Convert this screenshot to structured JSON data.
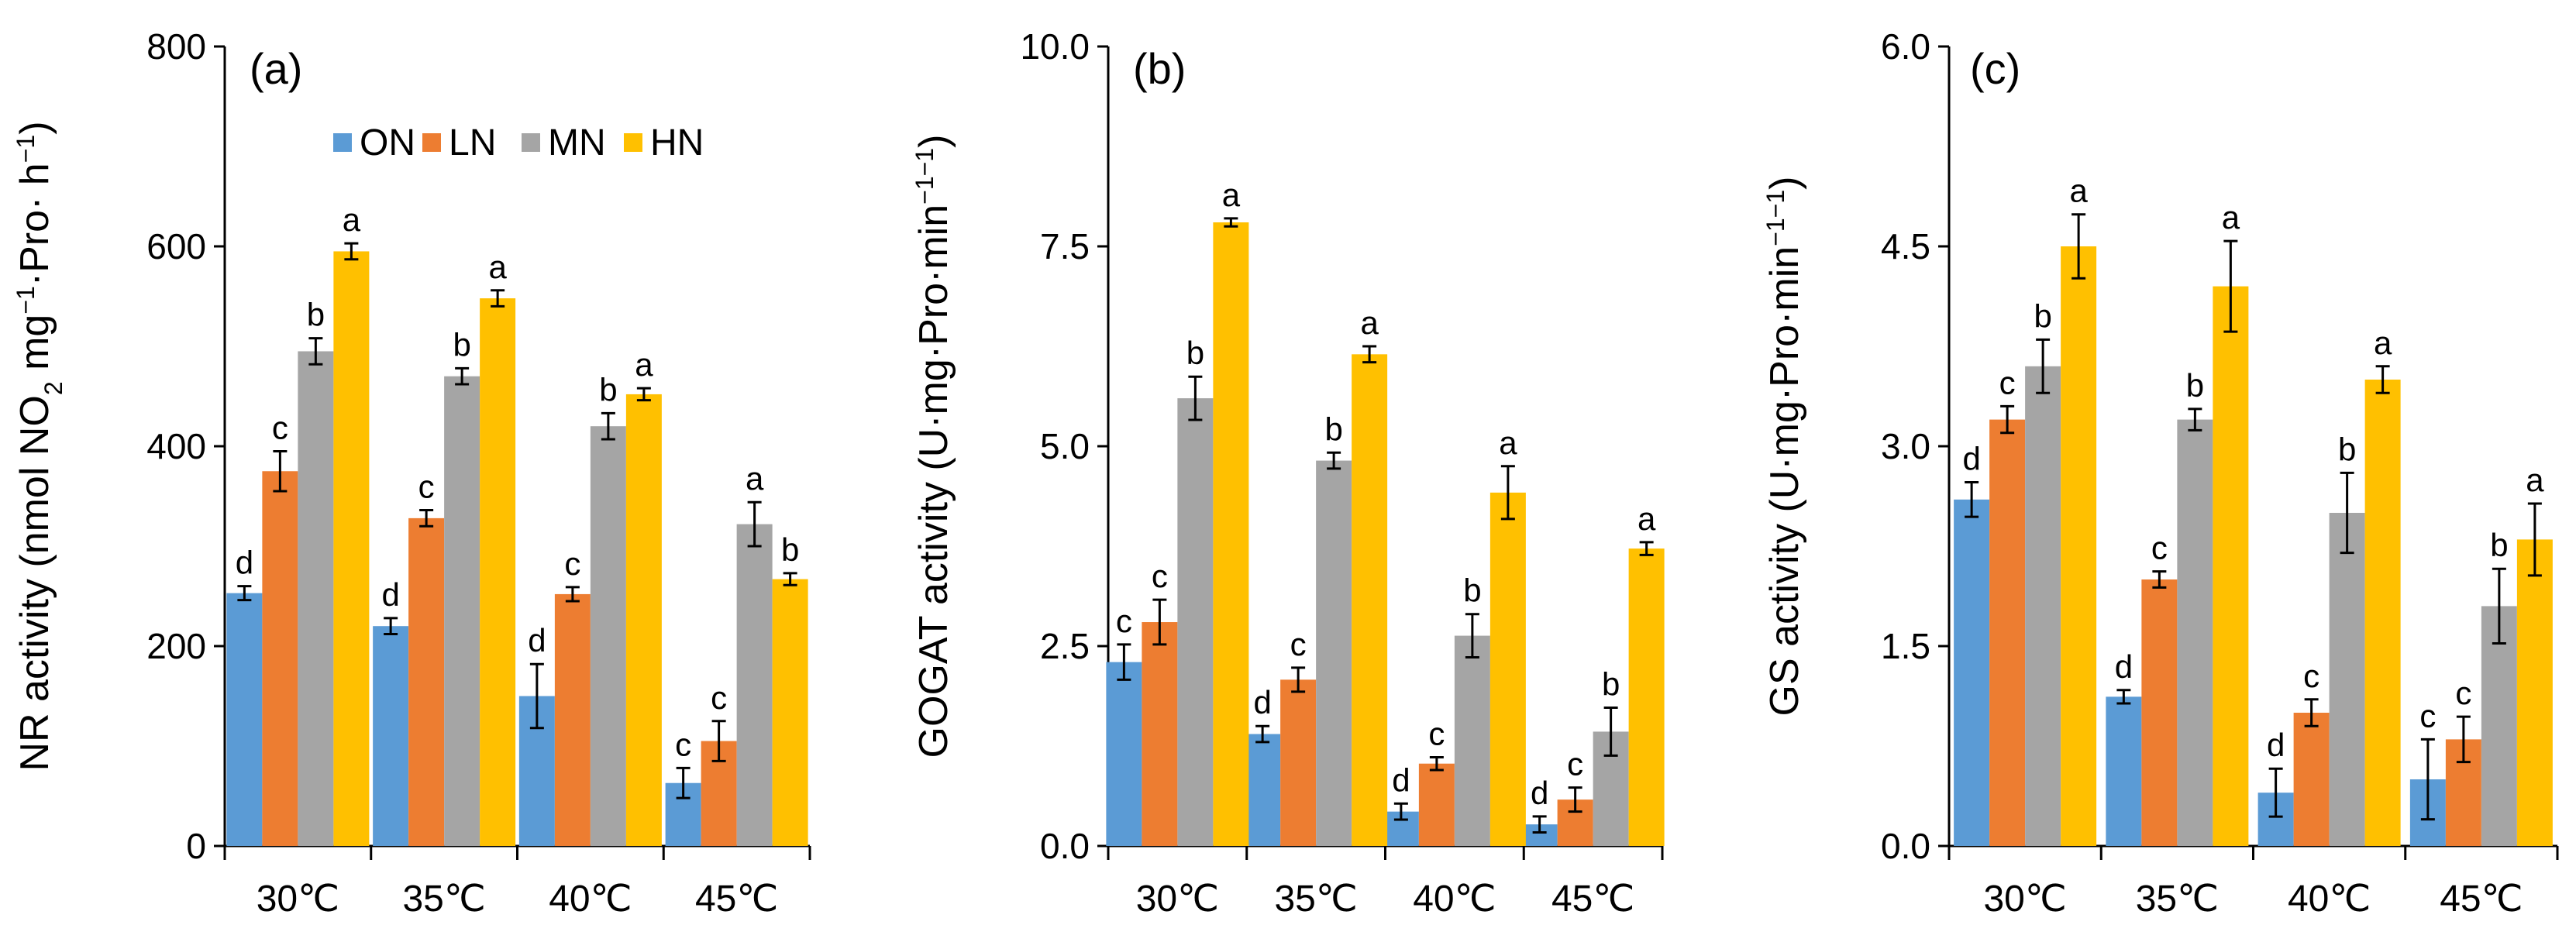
{
  "colors": {
    "ON": "#5B9BD5",
    "LN": "#ED7D31",
    "MN": "#A5A5A5",
    "HN": "#FFC000"
  },
  "legend": [
    "ON",
    "LN",
    "MN",
    "HN"
  ],
  "chart_data": [
    {
      "type": "bar",
      "panel": "(a)",
      "categories": [
        "30℃",
        "35℃",
        "40℃",
        "45℃"
      ],
      "ylim": [
        0,
        800
      ],
      "yticks": [
        "0",
        "200",
        "400",
        "600",
        "800"
      ],
      "ylabel": {
        "base": "NR activity (nmol NO",
        "sub": "2",
        "mid1": " mg",
        "sup1": "−1",
        "mid2": "·Pro· h",
        "sup2": "−1",
        "end": ")"
      },
      "series": [
        {
          "name": "ON",
          "values": [
            253,
            220,
            150,
            63
          ],
          "errors": [
            7,
            8,
            32,
            15
          ],
          "letters": [
            "d",
            "d",
            "d",
            "c"
          ]
        },
        {
          "name": "LN",
          "values": [
            375,
            328,
            252,
            105
          ],
          "errors": [
            20,
            8,
            7,
            20
          ],
          "letters": [
            "c",
            "c",
            "c",
            "c"
          ]
        },
        {
          "name": "MN",
          "values": [
            495,
            470,
            420,
            322
          ],
          "errors": [
            13,
            8,
            13,
            22
          ],
          "letters": [
            "b",
            "b",
            "b",
            "a"
          ]
        },
        {
          "name": "HN",
          "values": [
            595,
            548,
            452,
            267
          ],
          "errors": [
            8,
            8,
            6,
            6
          ],
          "letters": [
            "a",
            "a",
            "a",
            "b"
          ]
        }
      ]
    },
    {
      "type": "bar",
      "panel": "(b)",
      "categories": [
        "30℃",
        "35℃",
        "40℃",
        "45℃"
      ],
      "ylim": [
        0,
        10
      ],
      "yticks": [
        "0.0",
        "2.5",
        "5.0",
        "7.5",
        "10.0"
      ],
      "ylabel": {
        "base": "GOGAT activity (U·mg",
        "sup1": "−1",
        "mid1": "·Pro·min",
        "sup2": "−1",
        "end": ")"
      },
      "series": [
        {
          "name": "ON",
          "values": [
            2.3,
            1.4,
            0.43,
            0.27
          ],
          "errors": [
            0.22,
            0.1,
            0.1,
            0.1
          ],
          "letters": [
            "c",
            "d",
            "d",
            "d"
          ]
        },
        {
          "name": "LN",
          "values": [
            2.8,
            2.08,
            1.03,
            0.58
          ],
          "errors": [
            0.28,
            0.15,
            0.08,
            0.15
          ],
          "letters": [
            "c",
            "c",
            "c",
            "c"
          ]
        },
        {
          "name": "MN",
          "values": [
            5.6,
            4.82,
            2.63,
            1.43
          ],
          "errors": [
            0.27,
            0.1,
            0.27,
            0.3
          ],
          "letters": [
            "b",
            "b",
            "b",
            "b"
          ]
        },
        {
          "name": "HN",
          "values": [
            7.8,
            6.15,
            4.42,
            3.72
          ],
          "errors": [
            0.05,
            0.1,
            0.33,
            0.08
          ],
          "letters": [
            "a",
            "a",
            "a",
            "a"
          ]
        }
      ]
    },
    {
      "type": "bar",
      "panel": "(c)",
      "categories": [
        "30℃",
        "35℃",
        "40℃",
        "45℃"
      ],
      "ylim": [
        0,
        6
      ],
      "yticks": [
        "0.0",
        "1.5",
        "3.0",
        "4.5",
        "6.0"
      ],
      "ylabel": {
        "base": "GS activity (U·mg",
        "sup1": "−1",
        "mid1": "·Pro·min",
        "sup2": "−1",
        "end": ")"
      },
      "series": [
        {
          "name": "ON",
          "values": [
            2.6,
            1.12,
            0.4,
            0.5
          ],
          "errors": [
            0.13,
            0.05,
            0.18,
            0.3
          ],
          "letters": [
            "d",
            "d",
            "d",
            "c"
          ]
        },
        {
          "name": "LN",
          "values": [
            3.2,
            2.0,
            1.0,
            0.8
          ],
          "errors": [
            0.1,
            0.06,
            0.1,
            0.17
          ],
          "letters": [
            "c",
            "c",
            "c",
            "c"
          ]
        },
        {
          "name": "MN",
          "values": [
            3.6,
            3.2,
            2.5,
            1.8
          ],
          "errors": [
            0.2,
            0.08,
            0.3,
            0.28
          ],
          "letters": [
            "b",
            "b",
            "b",
            "b"
          ]
        },
        {
          "name": "HN",
          "values": [
            4.5,
            4.2,
            3.5,
            2.3
          ],
          "errors": [
            0.24,
            0.34,
            0.1,
            0.27
          ],
          "letters": [
            "a",
            "a",
            "a",
            "a"
          ]
        }
      ]
    }
  ]
}
